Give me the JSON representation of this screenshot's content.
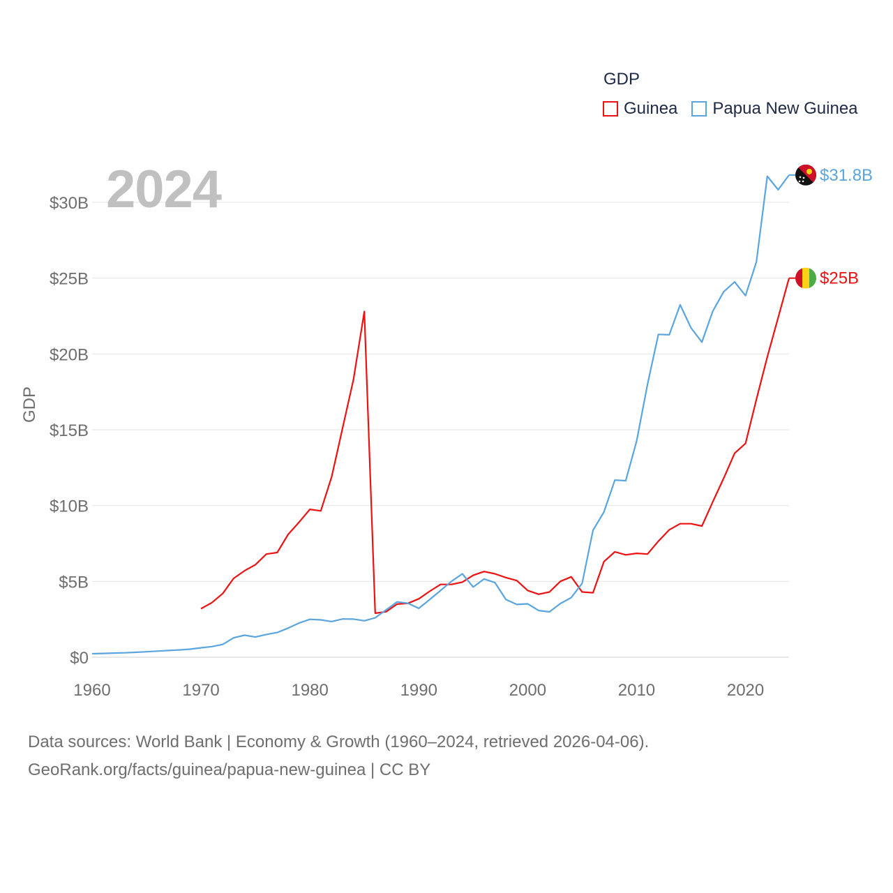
{
  "colors": {
    "guinea": "#ee1111",
    "png": "#5aa5e0",
    "grid": "#e6e6e6",
    "axis_text": "#6e6e6e",
    "year_label": "#c0c0c0"
  },
  "year_label": "2024",
  "legend": {
    "title": "GDP",
    "items": [
      "Guinea",
      "Papua New Guinea"
    ]
  },
  "footer": {
    "line1": "Data sources: World Bank | Economy & Growth (1960–2024, retrieved 2026-04-06).",
    "line2": "GeoRank.org/facts/guinea/papua-new-guinea | CC BY"
  },
  "chart_data": {
    "type": "line",
    "title": "GDP",
    "xlabel": "",
    "ylabel": "GDP",
    "xlim": [
      1960,
      2024
    ],
    "ylim": [
      0,
      33
    ],
    "x_ticks": [
      1960,
      1970,
      1980,
      1990,
      2000,
      2010,
      2020
    ],
    "y_ticks": [
      0,
      5,
      10,
      15,
      20,
      25,
      30
    ],
    "y_tick_labels": [
      "$0",
      "$5B",
      "$10B",
      "$15B",
      "$20B",
      "$25B",
      "$30B"
    ],
    "grid": true,
    "units": "billion USD",
    "series": [
      {
        "name": "Guinea",
        "color": "#ee1111",
        "end_label": "$25B",
        "x": [
          1970,
          1971,
          1972,
          1973,
          1974,
          1975,
          1976,
          1977,
          1978,
          1979,
          1980,
          1981,
          1982,
          1983,
          1984,
          1985,
          1986,
          1987,
          1988,
          1989,
          1990,
          1991,
          1992,
          1993,
          1994,
          1995,
          1996,
          1997,
          1998,
          1999,
          2000,
          2001,
          2002,
          2003,
          2004,
          2005,
          2006,
          2007,
          2008,
          2009,
          2010,
          2011,
          2012,
          2013,
          2014,
          2015,
          2016,
          2017,
          2018,
          2019,
          2020,
          2021,
          2022,
          2023,
          2024
        ],
        "values": [
          3.2,
          3.6,
          4.2,
          5.2,
          5.7,
          6.1,
          6.8,
          6.9,
          8.1,
          8.9,
          9.75,
          9.65,
          11.9,
          15.1,
          18.3,
          22.8,
          2.9,
          3.0,
          3.5,
          3.55,
          3.85,
          4.35,
          4.8,
          4.8,
          4.95,
          5.4,
          5.65,
          5.5,
          5.25,
          5.05,
          4.4,
          4.15,
          4.3,
          5.0,
          5.3,
          4.3,
          4.25,
          6.3,
          6.95,
          6.75,
          6.85,
          6.8,
          7.65,
          8.4,
          8.8,
          8.8,
          8.65,
          10.25,
          11.8,
          13.45,
          14.1,
          17.0,
          19.8,
          22.4,
          25.0
        ]
      },
      {
        "name": "Papua New Guinea",
        "color": "#5aa5e0",
        "end_label": "$31.8B",
        "x": [
          1960,
          1961,
          1962,
          1963,
          1964,
          1965,
          1966,
          1967,
          1968,
          1969,
          1970,
          1971,
          1972,
          1973,
          1974,
          1975,
          1976,
          1977,
          1978,
          1979,
          1980,
          1981,
          1982,
          1983,
          1984,
          1985,
          1986,
          1987,
          1988,
          1989,
          1990,
          1991,
          1992,
          1993,
          1994,
          1995,
          1996,
          1997,
          1998,
          1999,
          2000,
          2001,
          2002,
          2003,
          2004,
          2005,
          2006,
          2007,
          2008,
          2009,
          2010,
          2011,
          2012,
          2013,
          2014,
          2015,
          2016,
          2017,
          2018,
          2019,
          2020,
          2021,
          2022,
          2023,
          2024
        ],
        "values": [
          0.23,
          0.25,
          0.27,
          0.29,
          0.32,
          0.36,
          0.4,
          0.44,
          0.48,
          0.53,
          0.62,
          0.7,
          0.84,
          1.28,
          1.45,
          1.33,
          1.5,
          1.63,
          1.92,
          2.25,
          2.5,
          2.46,
          2.35,
          2.52,
          2.51,
          2.4,
          2.6,
          3.12,
          3.65,
          3.56,
          3.22,
          3.8,
          4.4,
          5.0,
          5.5,
          4.63,
          5.16,
          4.92,
          3.8,
          3.48,
          3.52,
          3.08,
          2.99,
          3.54,
          3.93,
          4.87,
          8.37,
          9.57,
          11.68,
          11.64,
          14.25,
          17.99,
          21.29,
          21.26,
          23.24,
          21.72,
          20.78,
          22.82,
          24.1,
          24.75,
          23.85,
          26.07,
          31.72,
          30.83,
          31.8
        ]
      }
    ]
  }
}
